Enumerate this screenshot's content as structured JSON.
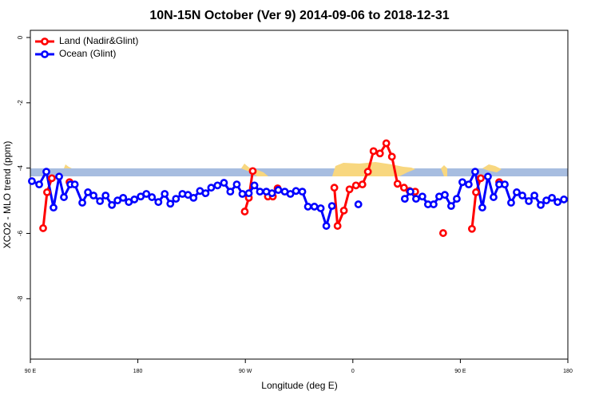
{
  "chart_data": {
    "type": "line",
    "title": "10N-15N October (Ver 9)   2014-09-06 to 2018-12-31",
    "x_label": "Longitude (deg E)",
    "y_label": "XCO2 - MLO trend (ppm)",
    "xlim": [
      90,
      540
    ],
    "xticks": [
      {
        "value": 90,
        "label": "90 E"
      },
      {
        "value": 180,
        "label": "180"
      },
      {
        "value": 270,
        "label": "90 W"
      },
      {
        "value": 360,
        "label": "0"
      },
      {
        "value": 450,
        "label": "90 E"
      },
      {
        "value": 540,
        "label": "180"
      }
    ],
    "ylim": [
      -9.85,
      0.22
    ],
    "yticks": [
      0,
      -2,
      -4,
      -6,
      -8
    ],
    "legend": "top-left",
    "series": [
      {
        "name": "Land (Nadir&Glint)",
        "color": "#ff0000",
        "x": [
          100.7,
          104,
          108,
          115,
          122.8,
          260,
          269.5,
          272.9,
          276.2,
          282,
          288.9,
          293,
          297,
          320,
          344.5,
          347.2,
          352.5,
          357.2,
          362.6,
          368,
          372.6,
          377.3,
          382.7,
          388,
          392.7,
          397.4,
          402.8,
          407.5,
          412.2,
          425,
          435.6,
          450,
          459.7,
          463.1,
          467.1,
          475,
          482.5
        ],
        "values": [
          -5.84,
          -4.74,
          -4.31,
          null,
          -4.43,
          null,
          -5.33,
          -4.91,
          -4.09,
          null,
          -4.87,
          -4.87,
          -4.62,
          null,
          -4.6,
          -5.77,
          -5.3,
          -4.65,
          -4.53,
          -4.5,
          -4.11,
          -3.48,
          -3.55,
          -3.24,
          -3.65,
          -4.48,
          -4.6,
          -4.7,
          -4.72,
          null,
          -5.99,
          null,
          -5.86,
          -4.74,
          -4.31,
          null,
          -4.43
        ]
      },
      {
        "name": "Ocean (Glint)",
        "color": "#0000ff",
        "x": [
          91.3,
          97.4,
          103.4,
          109.4,
          114.1,
          118.1,
          123.5,
          127.2,
          133.5,
          138.2,
          142.9,
          148.3,
          153,
          158.3,
          163,
          167.7,
          172.4,
          177.1,
          182.4,
          187.1,
          191.8,
          197.2,
          202.5,
          207.2,
          211.9,
          217.3,
          222,
          226.6,
          232,
          236.7,
          241.4,
          246.7,
          252.1,
          257.4,
          262.8,
          267.5,
          272.9,
          277.6,
          282.2,
          287.6,
          292.3,
          297.6,
          303,
          307.7,
          312.4,
          317.7,
          322.4,
          327.8,
          333.1,
          337.8,
          342.5,
          353,
          364.6,
          384,
          403.5,
          408.2,
          412.9,
          418.2,
          422.9,
          427.6,
          432.3,
          437,
          442.3,
          447,
          451.7,
          457,
          462.4,
          468.4,
          473.1,
          477.8,
          482.5,
          487.2,
          492.5,
          497.2,
          501.9,
          507.3,
          512,
          517.3,
          522,
          526.7,
          531.4,
          536.7
        ],
        "values": [
          -4.4,
          -4.5,
          -4.11,
          -5.21,
          -4.26,
          -4.89,
          -4.5,
          -4.5,
          -5.06,
          -4.74,
          -4.84,
          -5.01,
          -4.84,
          -5.13,
          -4.99,
          -4.91,
          -5.04,
          -4.96,
          -4.87,
          -4.79,
          -4.89,
          -5.04,
          -4.79,
          -5.09,
          -4.94,
          -4.79,
          -4.82,
          -4.91,
          -4.7,
          -4.77,
          -4.6,
          -4.53,
          -4.45,
          -4.72,
          -4.5,
          -4.79,
          -4.77,
          -4.53,
          -4.72,
          -4.72,
          -4.77,
          -4.67,
          -4.72,
          -4.79,
          -4.7,
          -4.72,
          -5.18,
          -5.18,
          -5.23,
          -5.77,
          -5.16,
          null,
          -5.11,
          null,
          -4.94,
          -4.72,
          -4.94,
          -4.87,
          -5.11,
          -5.11,
          -4.87,
          -4.82,
          -5.16,
          -4.94,
          -4.43,
          -4.5,
          -4.11,
          -5.21,
          -4.26,
          -4.89,
          -4.5,
          -4.5,
          -5.06,
          -4.74,
          -4.84,
          -5.01,
          -4.84,
          -5.13,
          -4.99,
          -4.91,
          -5.04,
          -4.96
        ]
      }
    ]
  }
}
